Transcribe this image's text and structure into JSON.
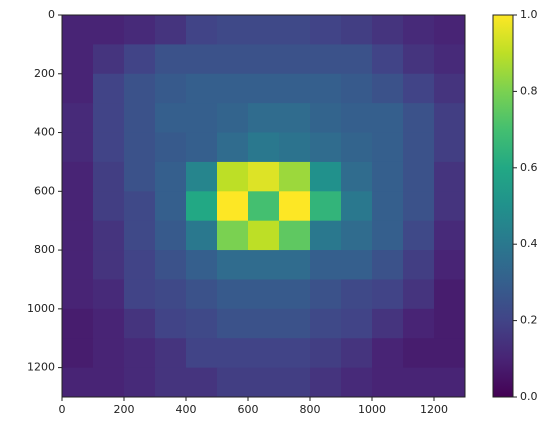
{
  "chart_data": {
    "type": "heatmap",
    "colormap": "viridis",
    "x": [
      50,
      150,
      250,
      350,
      450,
      550,
      650,
      750,
      850,
      950,
      1050,
      1150,
      1250
    ],
    "y": [
      50,
      150,
      250,
      350,
      450,
      550,
      650,
      750,
      850,
      950,
      1050,
      1150,
      1250
    ],
    "values": [
      [
        0.1,
        0.1,
        0.12,
        0.15,
        0.2,
        0.22,
        0.22,
        0.22,
        0.2,
        0.18,
        0.15,
        0.12,
        0.1
      ],
      [
        0.1,
        0.15,
        0.2,
        0.25,
        0.25,
        0.25,
        0.25,
        0.25,
        0.25,
        0.25,
        0.2,
        0.15,
        0.12
      ],
      [
        0.1,
        0.2,
        0.25,
        0.28,
        0.3,
        0.3,
        0.3,
        0.3,
        0.3,
        0.28,
        0.25,
        0.2,
        0.15
      ],
      [
        0.12,
        0.2,
        0.25,
        0.3,
        0.3,
        0.32,
        0.35,
        0.35,
        0.32,
        0.3,
        0.3,
        0.25,
        0.18
      ],
      [
        0.12,
        0.2,
        0.25,
        0.28,
        0.3,
        0.35,
        0.4,
        0.38,
        0.35,
        0.32,
        0.3,
        0.25,
        0.18
      ],
      [
        0.1,
        0.18,
        0.25,
        0.3,
        0.45,
        0.9,
        0.95,
        0.85,
        0.5,
        0.35,
        0.3,
        0.25,
        0.15
      ],
      [
        0.1,
        0.18,
        0.22,
        0.3,
        0.6,
        1.0,
        0.7,
        1.0,
        0.65,
        0.4,
        0.3,
        0.25,
        0.15
      ],
      [
        0.1,
        0.15,
        0.22,
        0.28,
        0.4,
        0.8,
        0.9,
        0.75,
        0.4,
        0.35,
        0.3,
        0.22,
        0.12
      ],
      [
        0.1,
        0.15,
        0.2,
        0.25,
        0.3,
        0.35,
        0.35,
        0.35,
        0.3,
        0.3,
        0.25,
        0.18,
        0.1
      ],
      [
        0.1,
        0.12,
        0.2,
        0.22,
        0.25,
        0.28,
        0.28,
        0.28,
        0.25,
        0.22,
        0.2,
        0.15,
        0.08
      ],
      [
        0.08,
        0.1,
        0.15,
        0.2,
        0.22,
        0.25,
        0.25,
        0.25,
        0.22,
        0.2,
        0.15,
        0.1,
        0.08
      ],
      [
        0.08,
        0.1,
        0.12,
        0.15,
        0.2,
        0.2,
        0.2,
        0.2,
        0.18,
        0.15,
        0.1,
        0.08,
        0.08
      ],
      [
        0.1,
        0.1,
        0.12,
        0.15,
        0.15,
        0.18,
        0.18,
        0.18,
        0.15,
        0.12,
        0.1,
        0.1,
        0.1
      ]
    ],
    "xlim": [
      0,
      1300
    ],
    "xticks": [
      0,
      200,
      400,
      600,
      800,
      1000,
      1200
    ],
    "ylim": [
      1300,
      0
    ],
    "yticks": [
      0,
      200,
      400,
      600,
      800,
      1000,
      1200
    ],
    "clim": [
      0,
      1
    ],
    "cticks": [
      {
        "value": 0,
        "label": "0.0"
      },
      0.2,
      0.4,
      0.6,
      0.8,
      {
        "value": 1,
        "label": "1.0"
      }
    ]
  }
}
